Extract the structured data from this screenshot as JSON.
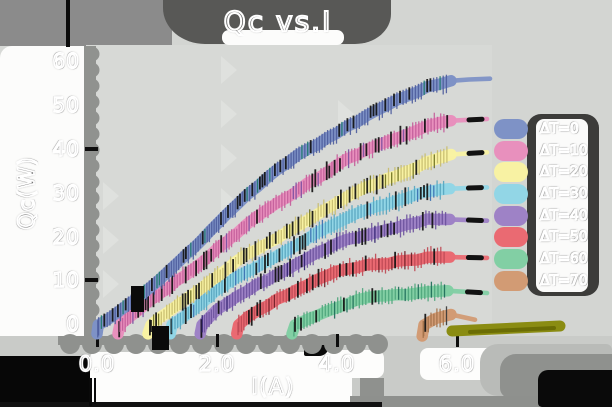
{
  "title": "Qc vs.I",
  "axes": {
    "x_label": "I(A)",
    "y_label": "Qc(W)",
    "x_ticks": [
      "0.0",
      "2.0",
      "4.0",
      "6.0"
    ],
    "y_ticks": [
      "0",
      "10",
      "20",
      "30",
      "40",
      "50",
      "60"
    ]
  },
  "legend": {
    "items": [
      {
        "label": "ΔT=0",
        "color": "#7e92c6"
      },
      {
        "label": "ΔT=10",
        "color": "#e890bd"
      },
      {
        "label": "ΔT=20",
        "color": "#f8f2a3"
      },
      {
        "label": "ΔT=30",
        "color": "#92d6e6"
      },
      {
        "label": "ΔT=40",
        "color": "#9e82c6"
      },
      {
        "label": "ΔT=50",
        "color": "#ea6a72"
      },
      {
        "label": "ΔT=60",
        "color": "#82cfa4"
      },
      {
        "label": "ΔT=70",
        "color": "#d29b74"
      }
    ]
  },
  "chart_data": {
    "type": "line",
    "title": "Qc vs.I",
    "xlabel": "I(A)",
    "ylabel": "Qc(W)",
    "xlim": [
      0,
      6.6
    ],
    "ylim": [
      0,
      60
    ],
    "x_tick_values": [
      0.0,
      2.0,
      4.0,
      6.0
    ],
    "y_tick_values": [
      0,
      10,
      20,
      30,
      40,
      50,
      60
    ],
    "grid": false,
    "legend_position": "right",
    "series": [
      {
        "name": "ΔT=0",
        "color": "#7e92c6",
        "hatch": "#4f5e9e",
        "accent": "#1f7a6e",
        "tail_mark": false,
        "points": [
          [
            0,
            -2
          ],
          [
            0.02,
            0
          ],
          [
            0.5,
            4.6
          ],
          [
            1,
            9.6
          ],
          [
            1.5,
            16
          ],
          [
            2,
            23.4
          ],
          [
            2.5,
            29.4
          ],
          [
            3,
            35.4
          ],
          [
            3.5,
            40.3
          ],
          [
            4,
            43.9
          ],
          [
            4.5,
            47.4
          ],
          [
            5,
            51.4
          ],
          [
            5.5,
            54.4
          ],
          [
            5.9,
            55.7
          ]
        ],
        "tail": [
          [
            5.9,
            55.7
          ],
          [
            6.2,
            56
          ],
          [
            6.55,
            56.2
          ]
        ]
      },
      {
        "name": "ΔT=10",
        "color": "#e890bd",
        "hatch": "#c45f9b",
        "accent": "#7a4fa0",
        "tail_mark": true,
        "points": [
          [
            0.35,
            -2
          ],
          [
            0.38,
            0
          ],
          [
            1,
            6.4
          ],
          [
            1.5,
            11.9
          ],
          [
            2,
            17.4
          ],
          [
            2.5,
            22.8
          ],
          [
            3,
            27.8
          ],
          [
            3.5,
            32.4
          ],
          [
            4,
            36.4
          ],
          [
            4.5,
            39.9
          ],
          [
            5,
            42.9
          ],
          [
            5.5,
            45.4
          ],
          [
            5.9,
            46.6
          ]
        ],
        "tail": [
          [
            5.9,
            46.6
          ],
          [
            6.5,
            47
          ]
        ]
      },
      {
        "name": "ΔT=20",
        "color": "#f8f2a3",
        "hatch": "#c8bd6f",
        "accent": "#6e7020",
        "tail_mark": true,
        "points": [
          [
            0.85,
            -2
          ],
          [
            0.9,
            0
          ],
          [
            1.5,
            6.3
          ],
          [
            2,
            11.3
          ],
          [
            2.5,
            15.8
          ],
          [
            3,
            19.9
          ],
          [
            3.5,
            23.9
          ],
          [
            4,
            27.8
          ],
          [
            4.5,
            31.3
          ],
          [
            5,
            34.4
          ],
          [
            5.5,
            37.4
          ],
          [
            5.9,
            38.9
          ]
        ],
        "tail": [
          [
            5.9,
            38.9
          ],
          [
            6.5,
            39.4
          ]
        ]
      },
      {
        "name": "ΔT=30",
        "color": "#92d6e6",
        "hatch": "#58a6c0",
        "accent": "#3a6fb0",
        "tail_mark": true,
        "points": [
          [
            1.22,
            -2
          ],
          [
            1.25,
            0
          ],
          [
            1.6,
            3.6
          ],
          [
            2,
            7.8
          ],
          [
            2.5,
            12
          ],
          [
            3,
            16
          ],
          [
            3.5,
            19.8
          ],
          [
            4,
            23.2
          ],
          [
            4.5,
            26.2
          ],
          [
            5,
            28.8
          ],
          [
            5.5,
            30.4
          ],
          [
            5.88,
            31.1
          ]
        ],
        "tail": [
          [
            5.88,
            31.1
          ],
          [
            6.5,
            31.4
          ]
        ]
      },
      {
        "name": "ΔT=40",
        "color": "#9e82c6",
        "hatch": "#6d539e",
        "accent": "#2f1f6e",
        "tail_mark": true,
        "points": [
          [
            1.72,
            -2
          ],
          [
            1.75,
            0
          ],
          [
            2,
            3.2
          ],
          [
            2.5,
            7.8
          ],
          [
            3,
            11.8
          ],
          [
            3.5,
            15.3
          ],
          [
            4,
            18.3
          ],
          [
            4.5,
            20.8
          ],
          [
            5,
            22.6
          ],
          [
            5.5,
            23.8
          ],
          [
            5.88,
            24.1
          ]
        ],
        "tail": [
          [
            5.88,
            24.1
          ],
          [
            6.5,
            23.8
          ]
        ]
      },
      {
        "name": "ΔT=50",
        "color": "#ea6a72",
        "hatch": "#bf4a55",
        "accent": "#701f28",
        "tail_mark": true,
        "points": [
          [
            2.33,
            -2
          ],
          [
            2.36,
            0
          ],
          [
            2.7,
            3.2
          ],
          [
            3,
            6
          ],
          [
            3.5,
            9.3
          ],
          [
            4,
            11.9
          ],
          [
            4.5,
            13.6
          ],
          [
            5,
            14.7
          ],
          [
            5.5,
            15.2
          ],
          [
            5.88,
            15.5
          ]
        ],
        "tail": [
          [
            5.88,
            15.5
          ],
          [
            6.5,
            15.3
          ]
        ]
      },
      {
        "name": "ΔT=60",
        "color": "#82cfa4",
        "hatch": "#4fa67c",
        "accent": "#1f6e5a",
        "tail_mark": true,
        "points": [
          [
            3.25,
            -2
          ],
          [
            3.3,
            0
          ],
          [
            3.5,
            1.6
          ],
          [
            4,
            4.2
          ],
          [
            4.5,
            5.9
          ],
          [
            5,
            7
          ],
          [
            5.5,
            7.6
          ],
          [
            5.85,
            7.8
          ]
        ],
        "tail": [
          [
            5.85,
            7.8
          ],
          [
            6.5,
            7.3
          ]
        ]
      },
      {
        "name": "ΔT=70",
        "color": "#d29b74",
        "hatch": "#a3714a",
        "accent": "#3a3a3a",
        "tail_mark": false,
        "points": [
          [
            5.42,
            -2.5
          ],
          [
            5.45,
            0
          ],
          [
            5.65,
            1.6
          ],
          [
            5.9,
            2.4
          ]
        ],
        "tail": [
          [
            5.9,
            2.4
          ],
          [
            6.3,
            1.2
          ]
        ]
      }
    ]
  }
}
